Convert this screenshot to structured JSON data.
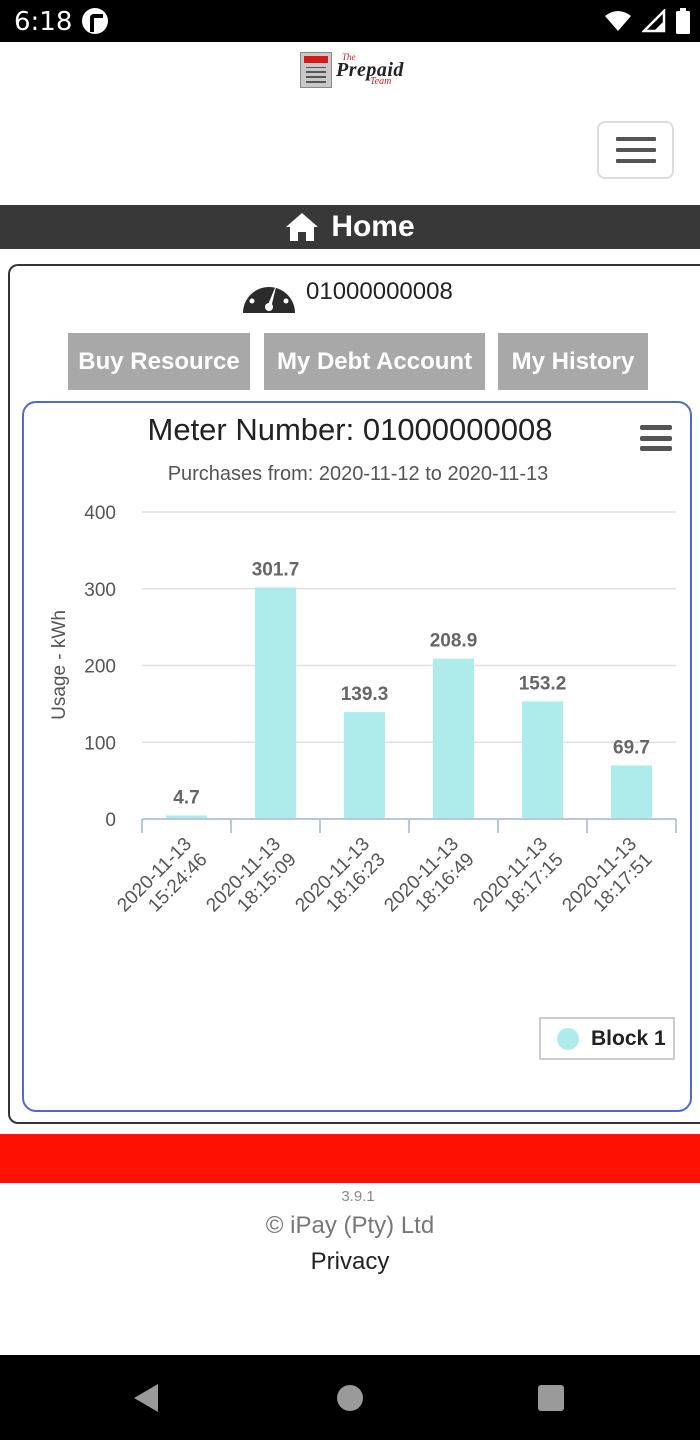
{
  "status_bar": {
    "time": "6:18",
    "icons": [
      "app-badge-icon",
      "wifi-icon",
      "signal-icon",
      "battery-icon"
    ]
  },
  "logo": {
    "the": "The",
    "prepaid": "Prepaid",
    "team": "Team"
  },
  "header": {
    "title": "Home",
    "icon": "home-icon"
  },
  "meter": {
    "number": "01000000008",
    "icon": "gauge-icon"
  },
  "actions": {
    "buy": "Buy Resource",
    "debt": "My Debt Account",
    "history": "My History"
  },
  "chart": {
    "title": "Meter Number: 01000000008",
    "subtitle": "Purchases from: 2020-11-12 to 2020-11-13",
    "bar_color": "#aeeceb"
  },
  "chart_data": {
    "type": "bar",
    "title": "Meter Number: 01000000008",
    "subtitle": "Purchases from: 2020-11-12 to 2020-11-13",
    "xlabel": "",
    "ylabel": "Usage - kWh",
    "ylim": [
      0,
      400
    ],
    "yticks": [
      0,
      100,
      200,
      300,
      400
    ],
    "grid": true,
    "legend": "bottom-right",
    "categories": [
      [
        "2020-11-13",
        "15:24:46"
      ],
      [
        "2020-11-13",
        "18:15:09"
      ],
      [
        "2020-11-13",
        "18:16:23"
      ],
      [
        "2020-11-13",
        "18:16:49"
      ],
      [
        "2020-11-13",
        "18:17:15"
      ],
      [
        "2020-11-13",
        "18:17:51"
      ]
    ],
    "series": [
      {
        "name": "Block 1",
        "values": [
          4.7,
          301.7,
          139.3,
          208.9,
          153.2,
          69.7
        ]
      }
    ]
  },
  "footer": {
    "version": "3.9.1",
    "copyright": "© iPay (Pty) Ltd",
    "privacy": "Privacy"
  },
  "nav": {
    "back": "back-icon",
    "home": "home-circle-icon",
    "recent": "recents-icon"
  }
}
